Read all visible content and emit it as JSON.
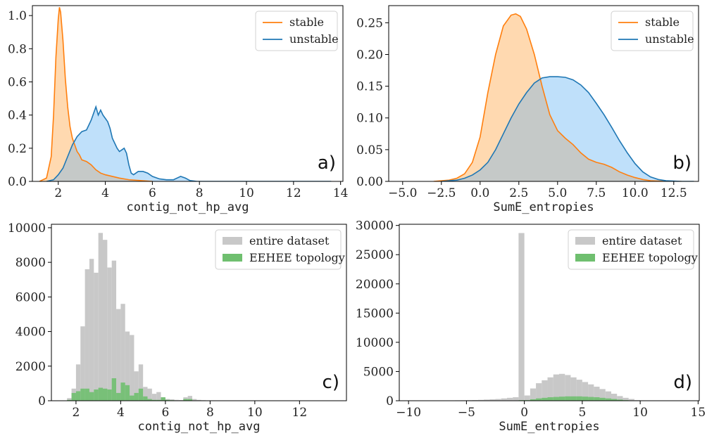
{
  "colors": {
    "stable": "#ff7f0e",
    "unstable": "#1f77b4",
    "stable_fill": "#ffd9b0",
    "unstable_fill": "#bfe0fa",
    "overlap_fill": "#c5c9c8",
    "entire_dataset": "#c8c8c8",
    "eehee_topology": "#6fbf6f"
  },
  "chart_data": [
    {
      "id": "a",
      "type": "area",
      "panel_label": "a)",
      "xlabel": "contig_not_hp_avg",
      "ylabel": "",
      "xlim": [
        0.9,
        14.1
      ],
      "ylim": [
        0,
        1.06
      ],
      "xticks": [
        2,
        4,
        6,
        8,
        10,
        12,
        14
      ],
      "xtick_labels": [
        "2",
        "4",
        "6",
        "8",
        "10",
        "12",
        "14"
      ],
      "yticks": [
        0,
        0.2,
        0.4,
        0.6,
        0.8,
        1.0
      ],
      "ytick_labels": [
        "0.0",
        "0.2",
        "0.4",
        "0.6",
        "0.8",
        "1.0"
      ],
      "legend": {
        "position": "top-right",
        "entries": [
          "stable",
          "unstable"
        ]
      },
      "series": [
        {
          "name": "stable",
          "x": [
            1.2,
            1.5,
            1.7,
            1.8,
            1.9,
            2.0,
            2.05,
            2.1,
            2.2,
            2.3,
            2.4,
            2.5,
            2.6,
            2.7,
            2.8,
            2.9,
            3.0,
            3.2,
            3.4,
            3.6,
            3.8,
            4.0,
            4.3,
            4.6,
            5.0,
            5.5,
            6.0
          ],
          "y": [
            0.0,
            0.02,
            0.15,
            0.4,
            0.75,
            0.98,
            1.05,
            1.02,
            0.85,
            0.62,
            0.45,
            0.33,
            0.26,
            0.22,
            0.18,
            0.16,
            0.13,
            0.12,
            0.1,
            0.07,
            0.05,
            0.04,
            0.03,
            0.02,
            0.01,
            0.005,
            0.0
          ]
        },
        {
          "name": "unstable",
          "x": [
            1.5,
            1.8,
            2.0,
            2.2,
            2.4,
            2.6,
            2.8,
            3.0,
            3.2,
            3.4,
            3.5,
            3.6,
            3.7,
            3.8,
            3.9,
            4.0,
            4.1,
            4.2,
            4.3,
            4.4,
            4.5,
            4.6,
            4.7,
            4.8,
            4.9,
            5.0,
            5.1,
            5.2,
            5.3,
            5.4,
            5.6,
            5.8,
            6.0,
            6.3,
            6.6,
            6.9,
            7.2,
            7.4,
            7.6,
            7.9,
            8.5,
            9.5,
            10.5,
            11.5,
            12.5,
            13.6
          ],
          "y": [
            0.0,
            0.01,
            0.04,
            0.08,
            0.15,
            0.22,
            0.27,
            0.3,
            0.31,
            0.37,
            0.41,
            0.45,
            0.4,
            0.43,
            0.4,
            0.38,
            0.36,
            0.32,
            0.26,
            0.23,
            0.2,
            0.18,
            0.19,
            0.2,
            0.17,
            0.1,
            0.05,
            0.04,
            0.05,
            0.06,
            0.06,
            0.05,
            0.03,
            0.015,
            0.01,
            0.01,
            0.03,
            0.02,
            0.005,
            0.0,
            0.0,
            0.0,
            0.0,
            0.0,
            0.0,
            0.0
          ]
        }
      ]
    },
    {
      "id": "b",
      "type": "area",
      "panel_label": "b)",
      "xlabel": "SumE_entropies",
      "ylabel": "",
      "xlim": [
        -5.9,
        14.1
      ],
      "ylim": [
        0,
        0.277
      ],
      "xticks": [
        -5.0,
        -2.5,
        0.0,
        2.5,
        5.0,
        7.5,
        10.0,
        12.5
      ],
      "xtick_labels": [
        "−5.0",
        "−2.5",
        "0.0",
        "2.5",
        "5.0",
        "7.5",
        "10.0",
        "12.5"
      ],
      "yticks": [
        0,
        0.05,
        0.1,
        0.15,
        0.2,
        0.25
      ],
      "ytick_labels": [
        "0.00",
        "0.05",
        "0.10",
        "0.15",
        "0.20",
        "0.25"
      ],
      "legend": {
        "position": "top-right",
        "entries": [
          "stable",
          "unstable"
        ]
      },
      "series": [
        {
          "name": "stable",
          "x": [
            -3.0,
            -2.0,
            -1.5,
            -1.0,
            -0.5,
            0.0,
            0.5,
            1.0,
            1.5,
            2.0,
            2.3,
            2.6,
            3.0,
            3.5,
            4.0,
            4.5,
            5.0,
            5.5,
            6.0,
            6.5,
            7.0,
            7.5,
            8.0,
            8.5,
            9.0,
            9.5,
            10.0,
            10.5,
            11.0,
            12.0,
            13.0
          ],
          "y": [
            0.0,
            0.002,
            0.005,
            0.012,
            0.03,
            0.07,
            0.14,
            0.2,
            0.245,
            0.262,
            0.264,
            0.26,
            0.24,
            0.2,
            0.15,
            0.105,
            0.08,
            0.068,
            0.058,
            0.045,
            0.035,
            0.03,
            0.027,
            0.022,
            0.015,
            0.01,
            0.006,
            0.003,
            0.001,
            0.0,
            0.0
          ]
        },
        {
          "name": "unstable",
          "x": [
            -2.5,
            -1.5,
            -1.0,
            -0.5,
            0.0,
            0.5,
            1.0,
            1.5,
            2.0,
            2.5,
            3.0,
            3.5,
            4.0,
            4.5,
            5.0,
            5.5,
            6.0,
            6.5,
            7.0,
            7.5,
            8.0,
            8.5,
            9.0,
            9.5,
            10.0,
            10.5,
            11.0,
            11.5,
            12.0,
            13.0,
            13.8
          ],
          "y": [
            0.0,
            0.002,
            0.005,
            0.01,
            0.018,
            0.03,
            0.05,
            0.075,
            0.1,
            0.122,
            0.14,
            0.155,
            0.163,
            0.165,
            0.165,
            0.164,
            0.16,
            0.152,
            0.14,
            0.123,
            0.105,
            0.085,
            0.064,
            0.045,
            0.028,
            0.015,
            0.007,
            0.003,
            0.001,
            0.0,
            0.0
          ]
        }
      ]
    },
    {
      "id": "c",
      "type": "bar",
      "panel_label": "c)",
      "xlabel": "contig_not_hp_avg",
      "ylabel": "",
      "xlim": [
        0.9,
        14.1
      ],
      "ylim": [
        0,
        10200
      ],
      "xticks": [
        2,
        4,
        6,
        8,
        10,
        12
      ],
      "xtick_labels": [
        "2",
        "4",
        "6",
        "8",
        "10",
        "12"
      ],
      "yticks": [
        0,
        2000,
        4000,
        6000,
        8000,
        10000
      ],
      "ytick_labels": [
        "0",
        "2000",
        "4000",
        "6000",
        "8000",
        "10000"
      ],
      "legend": {
        "position": "top-right",
        "entries": [
          "entire dataset",
          "EEHEE topology"
        ]
      },
      "bin_edges": [
        1.6,
        1.8,
        2.0,
        2.2,
        2.4,
        2.6,
        2.8,
        3.0,
        3.2,
        3.4,
        3.6,
        3.8,
        4.0,
        4.2,
        4.4,
        4.6,
        4.8,
        5.0,
        5.2,
        5.4,
        5.6,
        5.8,
        6.0,
        6.2,
        6.4,
        6.6,
        6.8,
        7.0,
        7.2,
        7.4,
        7.6,
        7.8
      ],
      "series": [
        {
          "name": "entire dataset",
          "values": [
            150,
            700,
            2100,
            4300,
            7600,
            8200,
            7400,
            9700,
            9300,
            7700,
            8100,
            5300,
            5600,
            4000,
            3800,
            1700,
            2100,
            800,
            700,
            400,
            500,
            200,
            100,
            80,
            50,
            40,
            200,
            280,
            100,
            50,
            30
          ]
        },
        {
          "name": "EEHEE topology",
          "values": [
            50,
            450,
            550,
            700,
            700,
            500,
            650,
            750,
            700,
            650,
            1300,
            450,
            1050,
            900,
            300,
            450,
            700,
            250,
            100,
            50,
            50,
            200,
            50,
            30,
            20,
            10,
            100,
            100,
            20,
            10,
            5
          ]
        }
      ]
    },
    {
      "id": "d",
      "type": "bar",
      "panel_label": "d)",
      "xlabel": "SumE_entropies",
      "ylabel": "",
      "xlim": [
        -10.8,
        15.1
      ],
      "ylim": [
        0,
        30200
      ],
      "xticks": [
        -10,
        -5,
        0,
        5,
        10,
        15
      ],
      "xtick_labels": [
        "−10",
        "−5",
        "0",
        "5",
        "10",
        "15"
      ],
      "yticks": [
        0,
        5000,
        10000,
        15000,
        20000,
        25000,
        30000
      ],
      "ytick_labels": [
        "0",
        "5000",
        "10000",
        "15000",
        "20000",
        "25000",
        "30000"
      ],
      "legend": {
        "position": "top-right",
        "entries": [
          "entire dataset",
          "EEHEE topology"
        ]
      },
      "bin_edges": [
        -10.5,
        -10.0,
        -9.5,
        -9.0,
        -8.5,
        -8.0,
        -7.5,
        -7.0,
        -6.5,
        -6.0,
        -5.5,
        -5.0,
        -4.5,
        -4.0,
        -3.5,
        -3.0,
        -2.5,
        -2.0,
        -1.5,
        -1.0,
        -0.5,
        0.0,
        0.5,
        1.0,
        1.5,
        2.0,
        2.5,
        3.0,
        3.5,
        4.0,
        4.5,
        5.0,
        5.5,
        6.0,
        6.5,
        7.0,
        7.5,
        8.0,
        8.5,
        9.0,
        9.5,
        10.0,
        10.5,
        11.0,
        11.5,
        12.0,
        12.5,
        13.0,
        13.5,
        14.0
      ],
      "series": [
        {
          "name": "entire dataset",
          "values": [
            20,
            20,
            30,
            30,
            30,
            40,
            40,
            50,
            60,
            70,
            80,
            100,
            120,
            150,
            200,
            250,
            300,
            400,
            500,
            600,
            28700,
            900,
            2100,
            3000,
            3500,
            4000,
            4500,
            4600,
            4400,
            4000,
            3600,
            3200,
            2800,
            2400,
            2000,
            1600,
            1200,
            800,
            500,
            300,
            100,
            50,
            30,
            20,
            10,
            10,
            5,
            5,
            5
          ]
        },
        {
          "name": "EEHEE topology",
          "values": [
            0,
            0,
            0,
            0,
            0,
            0,
            0,
            0,
            0,
            0,
            0,
            0,
            0,
            0,
            0,
            0,
            0,
            0,
            0,
            50,
            100,
            100,
            250,
            400,
            500,
            600,
            650,
            700,
            750,
            750,
            750,
            700,
            650,
            600,
            500,
            400,
            300,
            200,
            100,
            50,
            20,
            10,
            5,
            0,
            0,
            0,
            0,
            0,
            0
          ]
        }
      ]
    }
  ]
}
